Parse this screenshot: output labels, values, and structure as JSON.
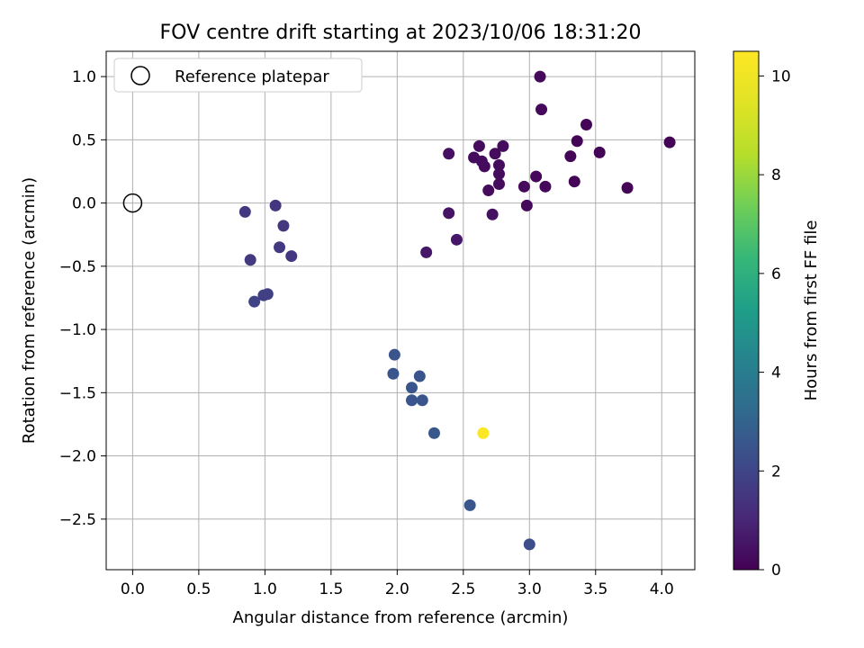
{
  "chart_data": {
    "type": "scatter",
    "title": "FOV centre drift starting at 2023/10/06 18:31:20",
    "xlabel": "Angular distance from reference (arcmin)",
    "ylabel": "Rotation from reference (arcmin)",
    "xlim": [
      -0.2,
      4.25
    ],
    "ylim": [
      -2.9,
      1.2
    ],
    "x_ticks": [
      0.0,
      0.5,
      1.0,
      1.5,
      2.0,
      2.5,
      3.0,
      3.5,
      4.0
    ],
    "x_tick_labels": [
      "0.0",
      "0.5",
      "1.0",
      "1.5",
      "2.0",
      "2.5",
      "3.0",
      "3.5",
      "4.0"
    ],
    "y_ticks": [
      1.0,
      0.5,
      0.0,
      -0.5,
      -1.0,
      -1.5,
      -2.0,
      -2.5
    ],
    "y_tick_labels": [
      "1.0",
      "0.5",
      "0.0",
      "−0.5",
      "−1.0",
      "−1.5",
      "−2.0",
      "−2.5"
    ],
    "grid": true,
    "legend": {
      "position": "top-left",
      "entries": [
        {
          "label": "Reference platepar",
          "marker": "open-circle"
        }
      ]
    },
    "reference_point": {
      "x": 0.0,
      "y": 0.0
    },
    "colorbar": {
      "label": "Hours from first FF file",
      "colormap": "viridis",
      "range": [
        0,
        10.5
      ],
      "ticks": [
        0,
        2,
        4,
        6,
        8,
        10
      ],
      "tick_labels": [
        "0",
        "2",
        "4",
        "6",
        "8",
        "10"
      ]
    },
    "points": [
      {
        "x": 3.08,
        "y": 1.0,
        "hours": 0.2
      },
      {
        "x": 3.09,
        "y": 0.74,
        "hours": 0.2
      },
      {
        "x": 3.43,
        "y": 0.62,
        "hours": 0.1
      },
      {
        "x": 3.36,
        "y": 0.49,
        "hours": 0.1
      },
      {
        "x": 4.06,
        "y": 0.48,
        "hours": 0.1
      },
      {
        "x": 2.62,
        "y": 0.45,
        "hours": 0.3
      },
      {
        "x": 2.8,
        "y": 0.45,
        "hours": 0.3
      },
      {
        "x": 3.53,
        "y": 0.4,
        "hours": 0.1
      },
      {
        "x": 2.39,
        "y": 0.39,
        "hours": 0.4
      },
      {
        "x": 2.74,
        "y": 0.39,
        "hours": 0.3
      },
      {
        "x": 3.31,
        "y": 0.37,
        "hours": 0.1
      },
      {
        "x": 2.58,
        "y": 0.36,
        "hours": 0.3
      },
      {
        "x": 2.64,
        "y": 0.33,
        "hours": 0.3
      },
      {
        "x": 2.77,
        "y": 0.3,
        "hours": 0.3
      },
      {
        "x": 2.66,
        "y": 0.29,
        "hours": 0.3
      },
      {
        "x": 2.77,
        "y": 0.23,
        "hours": 0.3
      },
      {
        "x": 3.05,
        "y": 0.21,
        "hours": 0.2
      },
      {
        "x": 3.34,
        "y": 0.17,
        "hours": 0.1
      },
      {
        "x": 2.77,
        "y": 0.15,
        "hours": 0.3
      },
      {
        "x": 3.12,
        "y": 0.13,
        "hours": 0.2
      },
      {
        "x": 2.96,
        "y": 0.13,
        "hours": 0.2
      },
      {
        "x": 3.74,
        "y": 0.12,
        "hours": 0.1
      },
      {
        "x": 2.69,
        "y": 0.1,
        "hours": 0.3
      },
      {
        "x": 2.98,
        "y": -0.02,
        "hours": 0.2
      },
      {
        "x": 2.39,
        "y": -0.08,
        "hours": 0.5
      },
      {
        "x": 2.72,
        "y": -0.09,
        "hours": 0.4
      },
      {
        "x": 2.45,
        "y": -0.29,
        "hours": 0.6
      },
      {
        "x": 2.22,
        "y": -0.39,
        "hours": 0.6
      },
      {
        "x": 1.08,
        "y": -0.02,
        "hours": 1.5
      },
      {
        "x": 0.85,
        "y": -0.07,
        "hours": 1.6
      },
      {
        "x": 1.14,
        "y": -0.18,
        "hours": 1.5
      },
      {
        "x": 1.11,
        "y": -0.35,
        "hours": 1.6
      },
      {
        "x": 1.2,
        "y": -0.42,
        "hours": 1.5
      },
      {
        "x": 0.89,
        "y": -0.45,
        "hours": 1.6
      },
      {
        "x": 1.02,
        "y": -0.72,
        "hours": 1.8
      },
      {
        "x": 0.99,
        "y": -0.73,
        "hours": 1.8
      },
      {
        "x": 0.92,
        "y": -0.78,
        "hours": 1.9
      },
      {
        "x": 1.98,
        "y": -1.2,
        "hours": 2.5
      },
      {
        "x": 1.97,
        "y": -1.35,
        "hours": 2.5
      },
      {
        "x": 2.17,
        "y": -1.37,
        "hours": 2.5
      },
      {
        "x": 2.11,
        "y": -1.46,
        "hours": 2.5
      },
      {
        "x": 2.11,
        "y": -1.56,
        "hours": 2.5
      },
      {
        "x": 2.19,
        "y": -1.56,
        "hours": 2.5
      },
      {
        "x": 2.28,
        "y": -1.82,
        "hours": 2.6
      },
      {
        "x": 2.55,
        "y": -2.39,
        "hours": 2.5
      },
      {
        "x": 3.0,
        "y": -2.7,
        "hours": 2.3
      },
      {
        "x": 2.65,
        "y": -1.82,
        "hours": 10.4
      }
    ]
  }
}
